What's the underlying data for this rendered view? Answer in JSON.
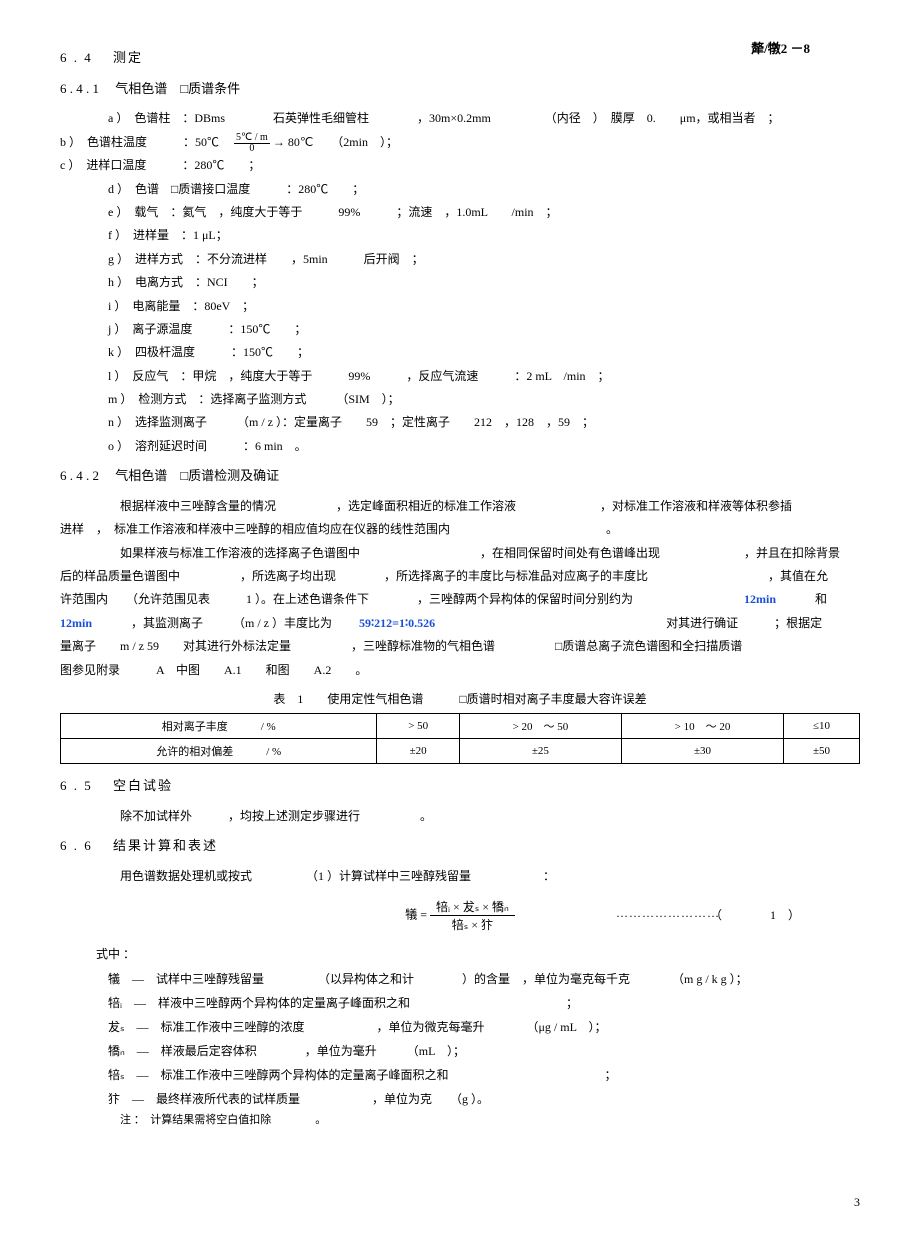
{
  "header": {
    "standard_no": "犛/犜2 －8"
  },
  "s64": {
    "num": "6 . 4",
    "title": "测定"
  },
  "s641": {
    "num": "6 . 4 . 1",
    "title": "气相色谱　□质谱条件",
    "a": "a ）　色谱柱　：DBms　　　　石英弹性毛细管柱　　　　，30m×0.2mm　　　　　（内径　）　膜厚　0.　　μm，或相当者　；",
    "b": "b ）　色谱柱温度　　　：50℃　",
    "b_frac_num": "5℃ / m",
    "b_frac_den": "0",
    "b_tail": " → 80℃　　（2min　）；",
    "c": "c ）　进样口温度　　　：280℃　　；",
    "d": "d ）　色谱　□质谱接口温度　　　：280℃　　；",
    "e": "e ）　载气　：氦气　，纯度大于等于　　　99%　　　；流速　，1.0mL　　/min　；",
    "f": "f ）　进样量　：1 μL；",
    "g": "g ）　进样方式　：不分流进样　　，5min　　　后开阀　；",
    "h": "h ）　电离方式　：NCI　　；",
    "i": "i ）　电离能量　：80eV　；",
    "j": "j ）　离子源温度　　　：150℃　　；",
    "k": "k ）　四极杆温度　　　：150℃　　；",
    "l": "l ）　反应气　：甲烷　，纯度大于等于　　　99%　　　，反应气流速　　　：2 mL　/min　；",
    "m": "m ）　检测方式　：选择离子监测方式　　　（SIM　）；",
    "n": "n ）　选择监测离子　　　（m / z ）：定量离子　　59　；定性离子　　212　，128　，59　；",
    "o": "o ）　溶剂延迟时间　　　：6 min　。"
  },
  "s642": {
    "num": "6 . 4 . 2",
    "title": "气相色谱　□质谱检测及确证",
    "p1a": "根据样液中三唑醇含量的情况　　　　　，选定峰面积相近的标准工作溶液　　　　　　　，对标准工作溶液和样液等体积参插",
    "p1b": "进样　，　标准工作溶液和样液中三唑醇的相应值均应在仪器的线性范围内　　　　　　　　　　　　　。",
    "p2a": "如果样液与标准工作溶液的选择离子色谱图中　　　　　　　　　　，在相同保留时间处有色谱峰出现　　　　　　　，并且在扣除背景",
    "p2b": "后的样品质量色谱图中　　　　　，所选离子均出现　　　　，所选择离子的丰度比与标准品对应离子的丰度比　　　　　　　　　　，其值在允",
    "p2c": "许范围内　　（允许范围见表　　　1 ）。在上述色谱条件下　　　　，三唑醇两个异构体的保留时间分别约为　　　　　　　　　",
    "p2c_blue1": "12min",
    "p2c_mid": "　　　和",
    "p2d_blue": "12min",
    "p2d": "　　　，其监测离子　　　（m / z ）丰度比为　　",
    "p2d_blue2": "59∶212=1∶0.526",
    "p2d_tail": "　　　　　　　　　　　　　　　　　　　对其进行确证　　　；根据定",
    "p2e": "量离子　　m / z 59　　对其进行外标法定量　　　　　，三唑醇标准物的气相色谱　　　　　□质谱总离子流色谱图和全扫描质谱",
    "p2f": "图参见附录　　　A　中图　　A.1　　和图　　A.2　　。"
  },
  "table": {
    "title": "表　1　　使用定性气相色谱　　　□质谱时相对离子丰度最大容许误差",
    "h1": "相对离子丰度　　　/ %",
    "h2": "> 50",
    "h3": "> 20　～ 50",
    "h4": "> 10　～ 20",
    "h5": "≤10",
    "r1": "允许的相对偏差　　　/ %",
    "r2": "±20",
    "r3": "±25",
    "r4": "±30",
    "r5": "±50"
  },
  "s65": {
    "num": "6 . 5",
    "title": "空白试验",
    "p": "除不加试样外　　　，均按上述测定步骤进行　　　　　。"
  },
  "s66": {
    "num": "6 . 6",
    "title": "结果计算和表述",
    "p1": "用色谱数据处理机或按式　　　　　（1 ）计算试样中三唑醇残留量　　　　　　：",
    "formula_left": "犠 =",
    "formula_num": "犃ᵢ × 犮ₛ × 犞ₙ",
    "formula_den": "犃ₛ × 犿",
    "formula_dots": "……………………",
    "formula_eqnum": "（　　　　1　）",
    "shizhong": "式中 ：",
    "v1": "犠　—　试样中三唑醇残留量　　　　　（以异构体之和计　　　　）的含量　，单位为毫克每千克　　　　（m g / k g ）；",
    "v2": "犃ᵢ　—　样液中三唑醇两个异构体的定量离子峰面积之和　　　　　　　　　　　　　；",
    "v3": "犮ₛ　—　标准工作液中三唑醇的浓度　　　　　　，单位为微克每毫升　　　　（μg / mL　）；",
    "v4": "犞ₙ　—　样液最后定容体积　　　　，单位为毫升　　　（mL　）；",
    "v5": "犃ₛ　—　标准工作液中三唑醇两个异构体的定量离子峰面积之和　　　　　　　　　　　　　；",
    "v6": "犿　—　最终样液所代表的试样质量　　　　　　，单位为克　　（g ）。",
    "note": "注 ：　计算结果需将空白值扣除　　　　。"
  },
  "page": {
    "num": "3"
  }
}
